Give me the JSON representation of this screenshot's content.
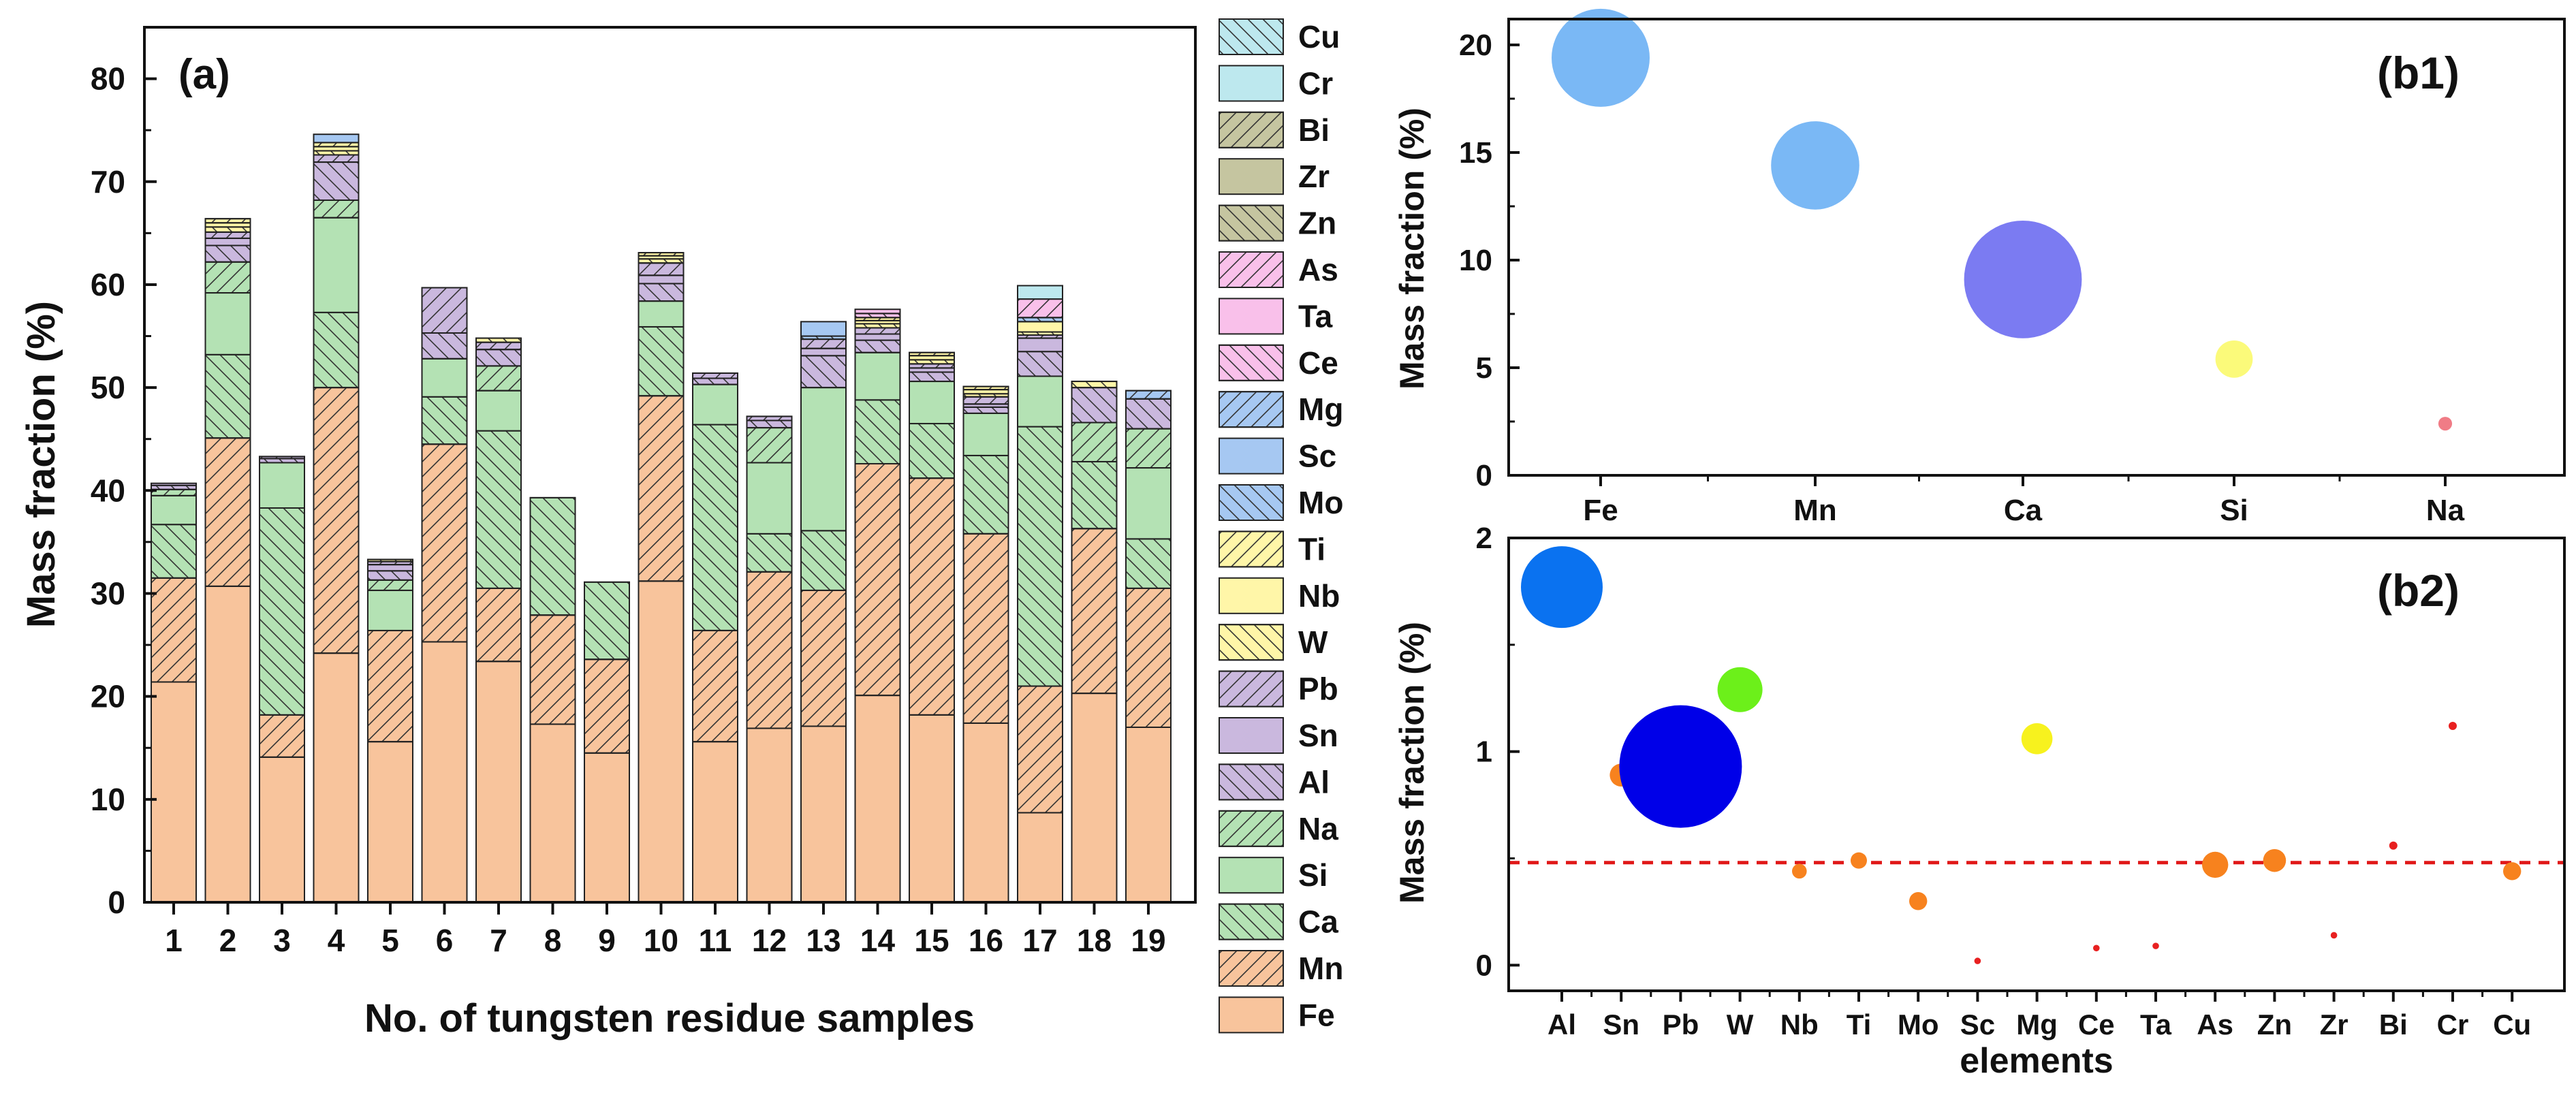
{
  "chart_data": [
    {
      "id": "a",
      "type": "bar",
      "stacked": true,
      "panel_label": "(a)",
      "xlabel": "No. of tungsten residue samples",
      "ylabel": "Mass fraction (%)",
      "ylim": [
        0,
        85
      ],
      "yticks": [
        0,
        10,
        20,
        30,
        40,
        50,
        60,
        70,
        80
      ],
      "categories": [
        "1",
        "2",
        "3",
        "4",
        "5",
        "6",
        "7",
        "8",
        "9",
        "10",
        "11",
        "12",
        "13",
        "14",
        "15",
        "16",
        "17",
        "18",
        "19"
      ],
      "legend_position": "right, outside plot",
      "series": [
        {
          "name": "Fe",
          "color": "#f8c49c",
          "hatch": "none",
          "values": [
            21.4,
            30.7,
            14.1,
            24.2,
            15.6,
            25.3,
            23.4,
            17.3,
            14.5,
            31.2,
            15.6,
            16.9,
            17.1,
            20.1,
            18.2,
            17.4,
            8.7,
            20.3,
            17.0
          ]
        },
        {
          "name": "Mn",
          "color": "#f8c49c",
          "hatch": "/",
          "values": [
            10.1,
            14.4,
            4.1,
            25.8,
            10.8,
            19.2,
            7.1,
            10.6,
            9.1,
            18.0,
            10.8,
            15.2,
            13.2,
            22.5,
            23.0,
            18.4,
            12.3,
            16.0,
            13.5
          ]
        },
        {
          "name": "Ca",
          "color": "#b4e2b4",
          "hatch": "\\",
          "values": [
            5.2,
            8.1,
            20.1,
            7.3,
            0.0,
            4.6,
            15.3,
            11.4,
            7.5,
            6.7,
            20.0,
            3.7,
            5.8,
            6.2,
            5.3,
            7.6,
            25.2,
            6.5,
            4.8
          ]
        },
        {
          "name": "Si",
          "color": "#b4e2b4",
          "hatch": "none",
          "values": [
            2.8,
            6.0,
            4.4,
            9.2,
            3.9,
            3.7,
            3.9,
            0.0,
            0.0,
            2.5,
            3.9,
            6.9,
            13.9,
            4.6,
            4.1,
            4.1,
            4.9,
            0.0,
            6.9
          ]
        },
        {
          "name": "Na",
          "color": "#b4e2b4",
          "hatch": "/",
          "values": [
            0.6,
            3.0,
            0.0,
            1.7,
            1.0,
            0.0,
            2.4,
            0.0,
            0.0,
            0.0,
            0.0,
            3.4,
            0.0,
            0.0,
            0.0,
            0.0,
            0.0,
            3.8,
            3.8
          ]
        },
        {
          "name": "Al",
          "color": "#cab8de",
          "hatch": "\\",
          "values": [
            0.4,
            1.6,
            0.4,
            3.7,
            0.9,
            2.5,
            1.6,
            0.0,
            0.0,
            1.7,
            0.6,
            0.7,
            3.1,
            1.2,
            0.9,
            0.6,
            2.4,
            3.4,
            2.9
          ]
        },
        {
          "name": "Sn",
          "color": "#cab8de",
          "hatch": "none",
          "values": [
            0.2,
            0.7,
            0.0,
            0.0,
            0.6,
            0.0,
            0.0,
            0.0,
            0.0,
            0.8,
            0.0,
            0.0,
            0.7,
            0.6,
            0.4,
            0.3,
            1.3,
            0.0,
            0.0
          ]
        },
        {
          "name": "Pb",
          "color": "#cab8de",
          "hatch": "/",
          "values": [
            0.0,
            0.6,
            0.2,
            0.7,
            0.3,
            4.4,
            0.7,
            0.0,
            0.0,
            1.2,
            0.5,
            0.4,
            0.9,
            0.6,
            0.4,
            0.7,
            0.3,
            0.0,
            0.0
          ]
        },
        {
          "name": "W",
          "color": "#fff6a8",
          "hatch": "\\",
          "values": [
            0.0,
            0.5,
            0.0,
            0.4,
            0.2,
            0.0,
            0.4,
            0.0,
            0.0,
            0.4,
            0.0,
            0.0,
            0.0,
            0.4,
            0.4,
            0.3,
            0.3,
            0.6,
            0.0
          ]
        },
        {
          "name": "Nb",
          "color": "#fff6a8",
          "hatch": "none",
          "values": [
            0.0,
            0.4,
            0.0,
            0.4,
            0.0,
            0.0,
            0.0,
            0.0,
            0.0,
            0.3,
            0.0,
            0.0,
            0.0,
            0.3,
            0.4,
            0.4,
            1.0,
            0.0,
            0.0
          ]
        },
        {
          "name": "Ti",
          "color": "#fff6a8",
          "hatch": "/",
          "values": [
            0.0,
            0.4,
            0.0,
            0.4,
            0.0,
            0.0,
            0.0,
            0.0,
            0.0,
            0.3,
            0.0,
            0.0,
            0.0,
            0.3,
            0.3,
            0.3,
            0.0,
            0.0,
            0.0
          ]
        },
        {
          "name": "Mo",
          "color": "#a6c8f2",
          "hatch": "\\",
          "values": [
            0.0,
            0.0,
            0.0,
            0.0,
            0.0,
            0.0,
            0.0,
            0.0,
            0.0,
            0.0,
            0.0,
            0.0,
            0.3,
            0.0,
            0.0,
            0.0,
            0.4,
            0.0,
            0.0
          ]
        },
        {
          "name": "Sc",
          "color": "#a6c8f2",
          "hatch": "none",
          "values": [
            0.0,
            0.0,
            0.0,
            0.8,
            0.0,
            0.0,
            0.0,
            0.0,
            0.0,
            0.0,
            0.0,
            0.0,
            1.4,
            0.0,
            0.0,
            0.0,
            0.0,
            0.0,
            0.0
          ]
        },
        {
          "name": "Mg",
          "color": "#a6c8f2",
          "hatch": "/",
          "values": [
            0.0,
            0.0,
            0.0,
            0.0,
            0.0,
            0.0,
            0.0,
            0.0,
            0.0,
            0.0,
            0.0,
            0.0,
            0.0,
            0.0,
            0.0,
            0.0,
            0.0,
            0.0,
            0.8
          ]
        },
        {
          "name": "Ce",
          "color": "#f9c0ea",
          "hatch": "\\",
          "values": [
            0.0,
            0.0,
            0.0,
            0.0,
            0.0,
            0.0,
            0.0,
            0.0,
            0.0,
            0.0,
            0.0,
            0.0,
            0.0,
            0.4,
            0.0,
            0.0,
            0.0,
            0.0,
            0.0
          ]
        },
        {
          "name": "Ta",
          "color": "#f9c0ea",
          "hatch": "none",
          "values": [
            0.0,
            0.0,
            0.0,
            0.0,
            0.0,
            0.0,
            0.0,
            0.0,
            0.0,
            0.0,
            0.0,
            0.0,
            0.0,
            0.4,
            0.0,
            0.0,
            0.0,
            0.0,
            0.0
          ]
        },
        {
          "name": "As",
          "color": "#f9c0ea",
          "hatch": "/",
          "values": [
            0.0,
            0.0,
            0.0,
            0.0,
            0.0,
            0.0,
            0.0,
            0.0,
            0.0,
            0.0,
            0.0,
            0.0,
            0.0,
            0.0,
            0.0,
            0.0,
            1.8,
            0.0,
            0.0
          ]
        },
        {
          "name": "Zn",
          "color": "#c5c5a0",
          "hatch": "\\",
          "values": [
            0.0,
            0.0,
            0.0,
            0.0,
            0.0,
            0.0,
            0.0,
            0.0,
            0.0,
            0.0,
            0.0,
            0.0,
            0.0,
            0.0,
            0.0,
            0.0,
            0.0,
            0.0,
            0.0
          ]
        },
        {
          "name": "Zr",
          "color": "#c5c5a0",
          "hatch": "none",
          "values": [
            0.0,
            0.0,
            0.0,
            0.0,
            0.0,
            0.0,
            0.0,
            0.0,
            0.0,
            0.0,
            0.0,
            0.0,
            0.0,
            0.0,
            0.0,
            0.0,
            0.0,
            0.0,
            0.0
          ]
        },
        {
          "name": "Bi",
          "color": "#c5c5a0",
          "hatch": "/",
          "values": [
            0.0,
            0.0,
            0.0,
            0.0,
            0.0,
            0.0,
            0.0,
            0.0,
            0.0,
            0.0,
            0.0,
            0.0,
            0.0,
            0.0,
            0.0,
            0.0,
            0.0,
            0.0,
            0.0
          ]
        },
        {
          "name": "Cr",
          "color": "#bde8ee",
          "hatch": "none",
          "values": [
            0.0,
            0.0,
            0.0,
            0.0,
            0.0,
            0.0,
            0.0,
            0.0,
            0.0,
            0.0,
            0.0,
            0.0,
            0.0,
            0.0,
            0.0,
            0.0,
            1.3,
            0.0,
            0.0
          ]
        },
        {
          "name": "Cu",
          "color": "#bde8ee",
          "hatch": "\\",
          "values": [
            0.0,
            0.0,
            0.0,
            0.0,
            0.0,
            0.0,
            0.0,
            0.0,
            0.0,
            0.0,
            0.0,
            0.0,
            0.0,
            0.0,
            0.0,
            0.0,
            0.0,
            0.0,
            0.0
          ]
        }
      ],
      "legend_order": [
        "Cu",
        "Cr",
        "Bi",
        "Zr",
        "Zn",
        "As",
        "Ta",
        "Ce",
        "Mg",
        "Sc",
        "Mo",
        "Ti",
        "Nb",
        "W",
        "Pb",
        "Sn",
        "Al",
        "Na",
        "Si",
        "Ca",
        "Mn",
        "Fe"
      ]
    },
    {
      "id": "b1",
      "type": "scatter",
      "bubble": true,
      "panel_label": "(b1)",
      "xlabel": "",
      "ylabel": "Mass fraction (%)",
      "ylim": [
        0,
        21.2
      ],
      "yticks": [
        0,
        5,
        10,
        15,
        20
      ],
      "categories": [
        "Fe",
        "Mn",
        "Ca",
        "Si",
        "Na"
      ],
      "values": [
        19.4,
        14.4,
        9.1,
        5.4,
        2.4
      ],
      "bubble_size": [
        1.0,
        0.9,
        1.2,
        0.38,
        0.14
      ],
      "colors": [
        "#7ab8f5",
        "#7ab8f5",
        "#7b7bf2",
        "#fbfa7a",
        "#f07c86"
      ]
    },
    {
      "id": "b2",
      "type": "scatter",
      "bubble": true,
      "panel_label": "(b2)",
      "xlabel": "elements",
      "ylabel": "Mass fraction (%)",
      "ylim": [
        -0.12,
        2.0
      ],
      "yticks": [
        0,
        1,
        2
      ],
      "categories": [
        "Al",
        "Sn",
        "Pb",
        "W",
        "Nb",
        "Ti",
        "Mo",
        "Sc",
        "Mg",
        "Ce",
        "Ta",
        "As",
        "Zn",
        "Zr",
        "Bi",
        "Cr",
        "Cu"
      ],
      "values": [
        1.77,
        0.89,
        0.93,
        1.29,
        0.44,
        0.49,
        0.3,
        0.02,
        1.06,
        0.08,
        0.09,
        0.47,
        0.49,
        0.14,
        0.56,
        1.12,
        0.44
      ],
      "bubble_size": [
        1.0,
        0.28,
        1.5,
        0.55,
        0.18,
        0.2,
        0.22,
        0.08,
        0.38,
        0.08,
        0.08,
        0.32,
        0.28,
        0.08,
        0.1,
        0.1,
        0.22
      ],
      "colors": [
        "#0a72f0",
        "#f7821e",
        "#0000e8",
        "#6cf01a",
        "#f7821e",
        "#f7821e",
        "#f7821e",
        "#e82020",
        "#f7f21e",
        "#e82020",
        "#e82020",
        "#f7821e",
        "#f7821e",
        "#e82020",
        "#e82020",
        "#e82020",
        "#f7821e"
      ],
      "reference_line": {
        "value": 0.48,
        "style": "dashed",
        "color": "#e01818"
      }
    }
  ]
}
